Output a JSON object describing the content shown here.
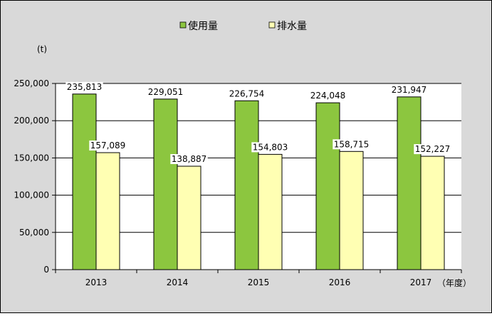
{
  "chart_data": {
    "type": "bar",
    "categories": [
      "2013",
      "2014",
      "2015",
      "2016",
      "2017"
    ],
    "series": [
      {
        "name": "使用量",
        "values": [
          235813,
          229051,
          226754,
          224048,
          231947
        ],
        "labels": [
          "235,813",
          "229,051",
          "226,754",
          "224,048",
          "231,947"
        ]
      },
      {
        "name": "排水量",
        "values": [
          157089,
          138887,
          154803,
          158715,
          152227
        ],
        "labels": [
          "157,089",
          "138,887",
          "154,803",
          "158,715",
          "152,227"
        ]
      }
    ],
    "y_unit": "(t)",
    "x_unit": "（年度）",
    "ylim": [
      0,
      250000
    ],
    "yticks": [
      0,
      50000,
      100000,
      150000,
      200000,
      250000
    ],
    "ytick_labels": [
      "0",
      "50,000",
      "100,000",
      "150,000",
      "200,000",
      "250,000"
    ],
    "grid": true,
    "legend_position": "top-center",
    "colors": {
      "background": "#d9d9d9",
      "plot_area": "#ffffff",
      "series": [
        "#8cc63f",
        "#ffffb3"
      ],
      "bar_stroke": "#000000",
      "grid": "#000000"
    }
  }
}
